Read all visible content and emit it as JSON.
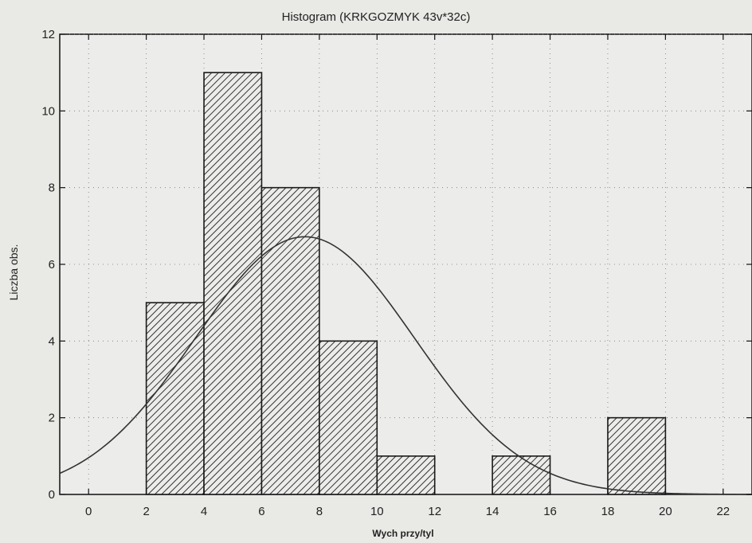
{
  "chart_data": {
    "type": "bar",
    "title": "Histogram (KRKGOZMYK 43v*32c)",
    "xlabel": "Wych przy/tyl",
    "ylabel": "Liczba obs.",
    "xlim": [
      -1,
      23
    ],
    "ylim": [
      0,
      12
    ],
    "xticks": [
      0,
      2,
      4,
      6,
      8,
      10,
      12,
      14,
      16,
      18,
      20,
      22
    ],
    "yticks": [
      0,
      2,
      4,
      6,
      8,
      10,
      12
    ],
    "bin_width": 2,
    "bins": [
      {
        "start": 2,
        "end": 4,
        "count": 5
      },
      {
        "start": 4,
        "end": 6,
        "count": 11
      },
      {
        "start": 6,
        "end": 8,
        "count": 8
      },
      {
        "start": 8,
        "end": 10,
        "count": 4
      },
      {
        "start": 10,
        "end": 12,
        "count": 1
      },
      {
        "start": 14,
        "end": 16,
        "count": 1
      },
      {
        "start": 18,
        "end": 20,
        "count": 2
      }
    ],
    "normal_fit": {
      "mean": 7.5,
      "sd": 3.8,
      "n": 32
    },
    "grid": "dotted",
    "bar_fill": "hatched",
    "colors": {
      "bar_edge": "#1a1a1a",
      "hatch": "#333333",
      "curve": "#333333",
      "background": "#e9e9e6",
      "plot_bg": "#ececea"
    }
  }
}
